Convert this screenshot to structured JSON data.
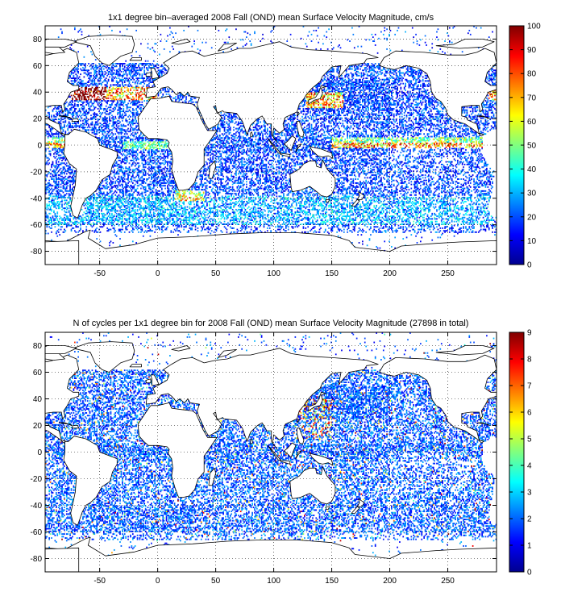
{
  "figure": {
    "background": "#ffffff"
  },
  "chart_data": [
    {
      "type": "heatmap",
      "title": "1x1 degree bin–averaged 2008 Fall (OND) mean Surface Velocity Magnitude, cm/s",
      "xlim": [
        -97,
        292
      ],
      "ylim": [
        -90,
        90
      ],
      "xticks": [
        "-50",
        "0",
        "50",
        "100",
        "150",
        "200",
        "250"
      ],
      "xtick_values": [
        -50,
        0,
        50,
        100,
        150,
        200,
        250
      ],
      "yticks": [
        "80",
        "60",
        "40",
        "20",
        "0",
        "-20",
        "-40",
        "-60",
        "-80"
      ],
      "ytick_values": [
        80,
        60,
        40,
        20,
        0,
        -20,
        -40,
        -60,
        -80
      ],
      "grid": "dotted",
      "colorbar": {
        "range": [
          0,
          100
        ],
        "ticks": [
          "0",
          "10",
          "20",
          "30",
          "40",
          "50",
          "60",
          "70",
          "80",
          "90",
          "100"
        ],
        "tick_values": [
          0,
          10,
          20,
          30,
          40,
          50,
          60,
          70,
          80,
          90,
          100
        ],
        "colormap": "jet",
        "placement": "right"
      },
      "typical_values": "mostly 10–30 cm/s; maxima of 70–100 cm/s along the equator (0°) in the Pacific, the Kuroshio near 35°N 140°E and the Gulf Stream near 38°N 295°E"
    },
    {
      "type": "heatmap",
      "title": "N of cycles per 1x1 degree bin for 2008 Fall (OND) mean Surface Velocity Magnitude (27898 in total)",
      "xlim": [
        -97,
        292
      ],
      "ylim": [
        -90,
        90
      ],
      "xticks": [
        "-50",
        "0",
        "50",
        "100",
        "150",
        "200",
        "250"
      ],
      "xtick_values": [
        -50,
        0,
        50,
        100,
        150,
        200,
        250
      ],
      "yticks": [
        "80",
        "60",
        "40",
        "20",
        "0",
        "-20",
        "-40",
        "-60",
        "-80"
      ],
      "ytick_values": [
        80,
        60,
        40,
        20,
        0,
        -20,
        -40,
        -60,
        -80
      ],
      "grid": "dotted",
      "colorbar": {
        "range": [
          0,
          9
        ],
        "ticks": [
          "0",
          "1",
          "2",
          "3",
          "4",
          "5",
          "6",
          "7",
          "8",
          "9"
        ],
        "tick_values": [
          0,
          1,
          2,
          3,
          4,
          5,
          6,
          7,
          8,
          9
        ],
        "colormap": "jet",
        "placement": "right"
      },
      "typical_values": "mostly 1–2 cycles per bin; up to 8–9 cycles near Japan, the Philippines and the western Pacific"
    }
  ]
}
